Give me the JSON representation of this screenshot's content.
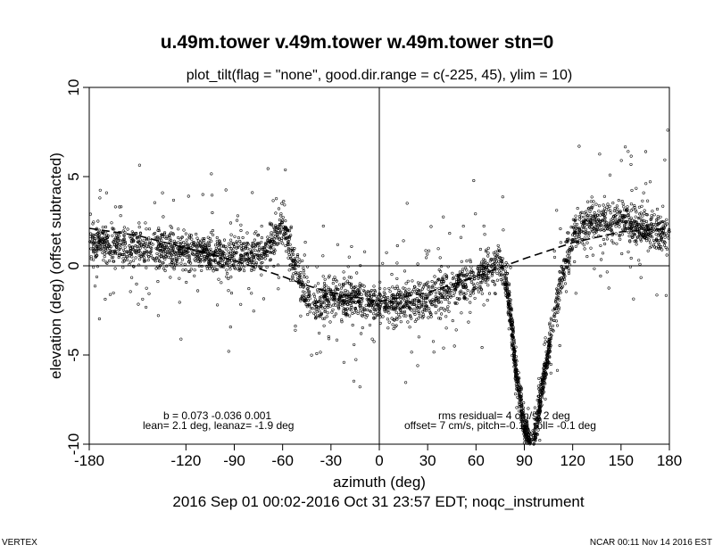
{
  "chart_data": {
    "type": "scatter",
    "title": "u.49m.tower v.49m.tower w.49m.tower stn=0",
    "subtitle": "plot_tilt(flag = \"none\", good.dir.range = c(-225, 45), ylim = 10)",
    "xlabel": "azimuth (deg)",
    "ylabel": "elevation (deg)   (offset subtracted)",
    "xlim": [
      -180,
      180
    ],
    "ylim": [
      -10,
      10
    ],
    "x_ticks": [
      -180,
      -120,
      -90,
      -60,
      -30,
      0,
      30,
      60,
      90,
      120,
      150,
      180
    ],
    "y_ticks": [
      -10,
      -5,
      0,
      5,
      10
    ],
    "reference_lines": {
      "horizontal": 0,
      "vertical": 0
    },
    "grid": false,
    "fit_curve_points": {
      "x": [
        -180,
        -150,
        -120,
        -90,
        -60,
        -45,
        -30,
        0,
        30,
        60,
        90,
        120,
        150,
        180
      ],
      "y": [
        2.1,
        1.7,
        1.0,
        0.3,
        -0.6,
        -1.1,
        -1.5,
        -2.0,
        -1.5,
        -0.6,
        0.4,
        1.3,
        1.9,
        2.1
      ]
    },
    "scatter_shape": {
      "x": [
        -180,
        -150,
        -120,
        -90,
        -70,
        -60,
        -50,
        -40,
        -30,
        0,
        30,
        60,
        75,
        80,
        85,
        90,
        95,
        100,
        110,
        120,
        130,
        150,
        180
      ],
      "y": [
        1.3,
        1.0,
        0.9,
        0.5,
        1.0,
        2.5,
        -0.8,
        -2.2,
        -1.6,
        -2.2,
        -1.9,
        -0.6,
        0.3,
        -1.5,
        -6.0,
        -9.0,
        -10.5,
        -7.5,
        -2.0,
        1.8,
        2.5,
        2.6,
        1.7
      ]
    },
    "annotations": {
      "b": "b =  0.073 -0.036  0.001",
      "lean": "lean= 2.1 deg, leanaz= -1.9 deg",
      "rms": "rms residual= 4 cm/s, 2 deg",
      "offset": "offset= 7 cm/s, pitch=-0.1 , roll= -0.1 deg"
    }
  },
  "date_range": "2016 Sep 01 00:02-2016 Oct 31 23:57 EDT; noqc_instrument",
  "footer": {
    "left": "VERTEX",
    "right": "NCAR 00:11 Nov 14 2016 EST"
  }
}
